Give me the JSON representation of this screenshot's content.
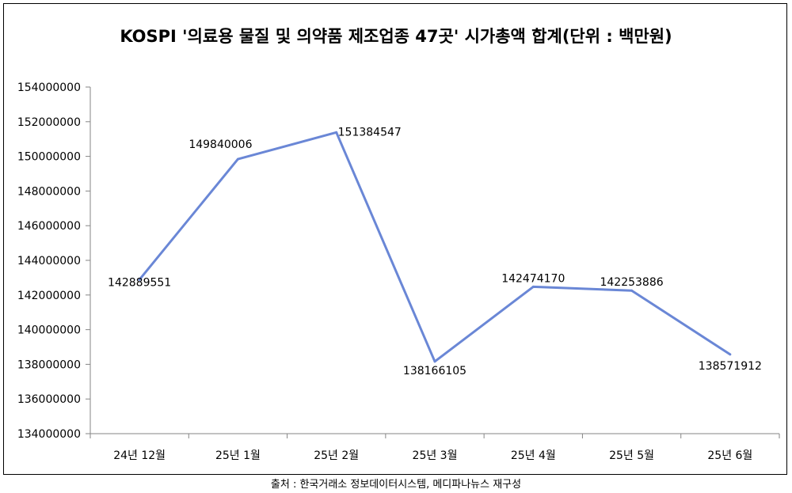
{
  "chart_data": {
    "type": "line",
    "title": "KOSPI '의료용 물질 및 의약품 제조업종 47곳' 시가총액 합계(단위 : 백만원)",
    "categories": [
      "24년 12월",
      "25년 1월",
      "25년 2월",
      "25년 3월",
      "25년 4월",
      "25년 5월",
      "25년 6월"
    ],
    "series": [
      {
        "values": [
          142889551,
          149840006,
          151384547,
          138166105,
          142474170,
          142253886,
          138571912
        ]
      }
    ],
    "data_labels": [
      "142889551",
      "149840006",
      "151384547",
      "138166105",
      "142474170",
      "142253886",
      "138571912"
    ],
    "yticks": [
      "134000000",
      "136000000",
      "138000000",
      "140000000",
      "142000000",
      "144000000",
      "146000000",
      "148000000",
      "150000000",
      "152000000",
      "154000000"
    ],
    "ylim": [
      134000000,
      154000000
    ],
    "grid": false,
    "legend": "none",
    "line_color": "#6a87d6",
    "source": "출처 : 한국거래소 정보데이터시스템, 메디파나뉴스 재구성"
  }
}
